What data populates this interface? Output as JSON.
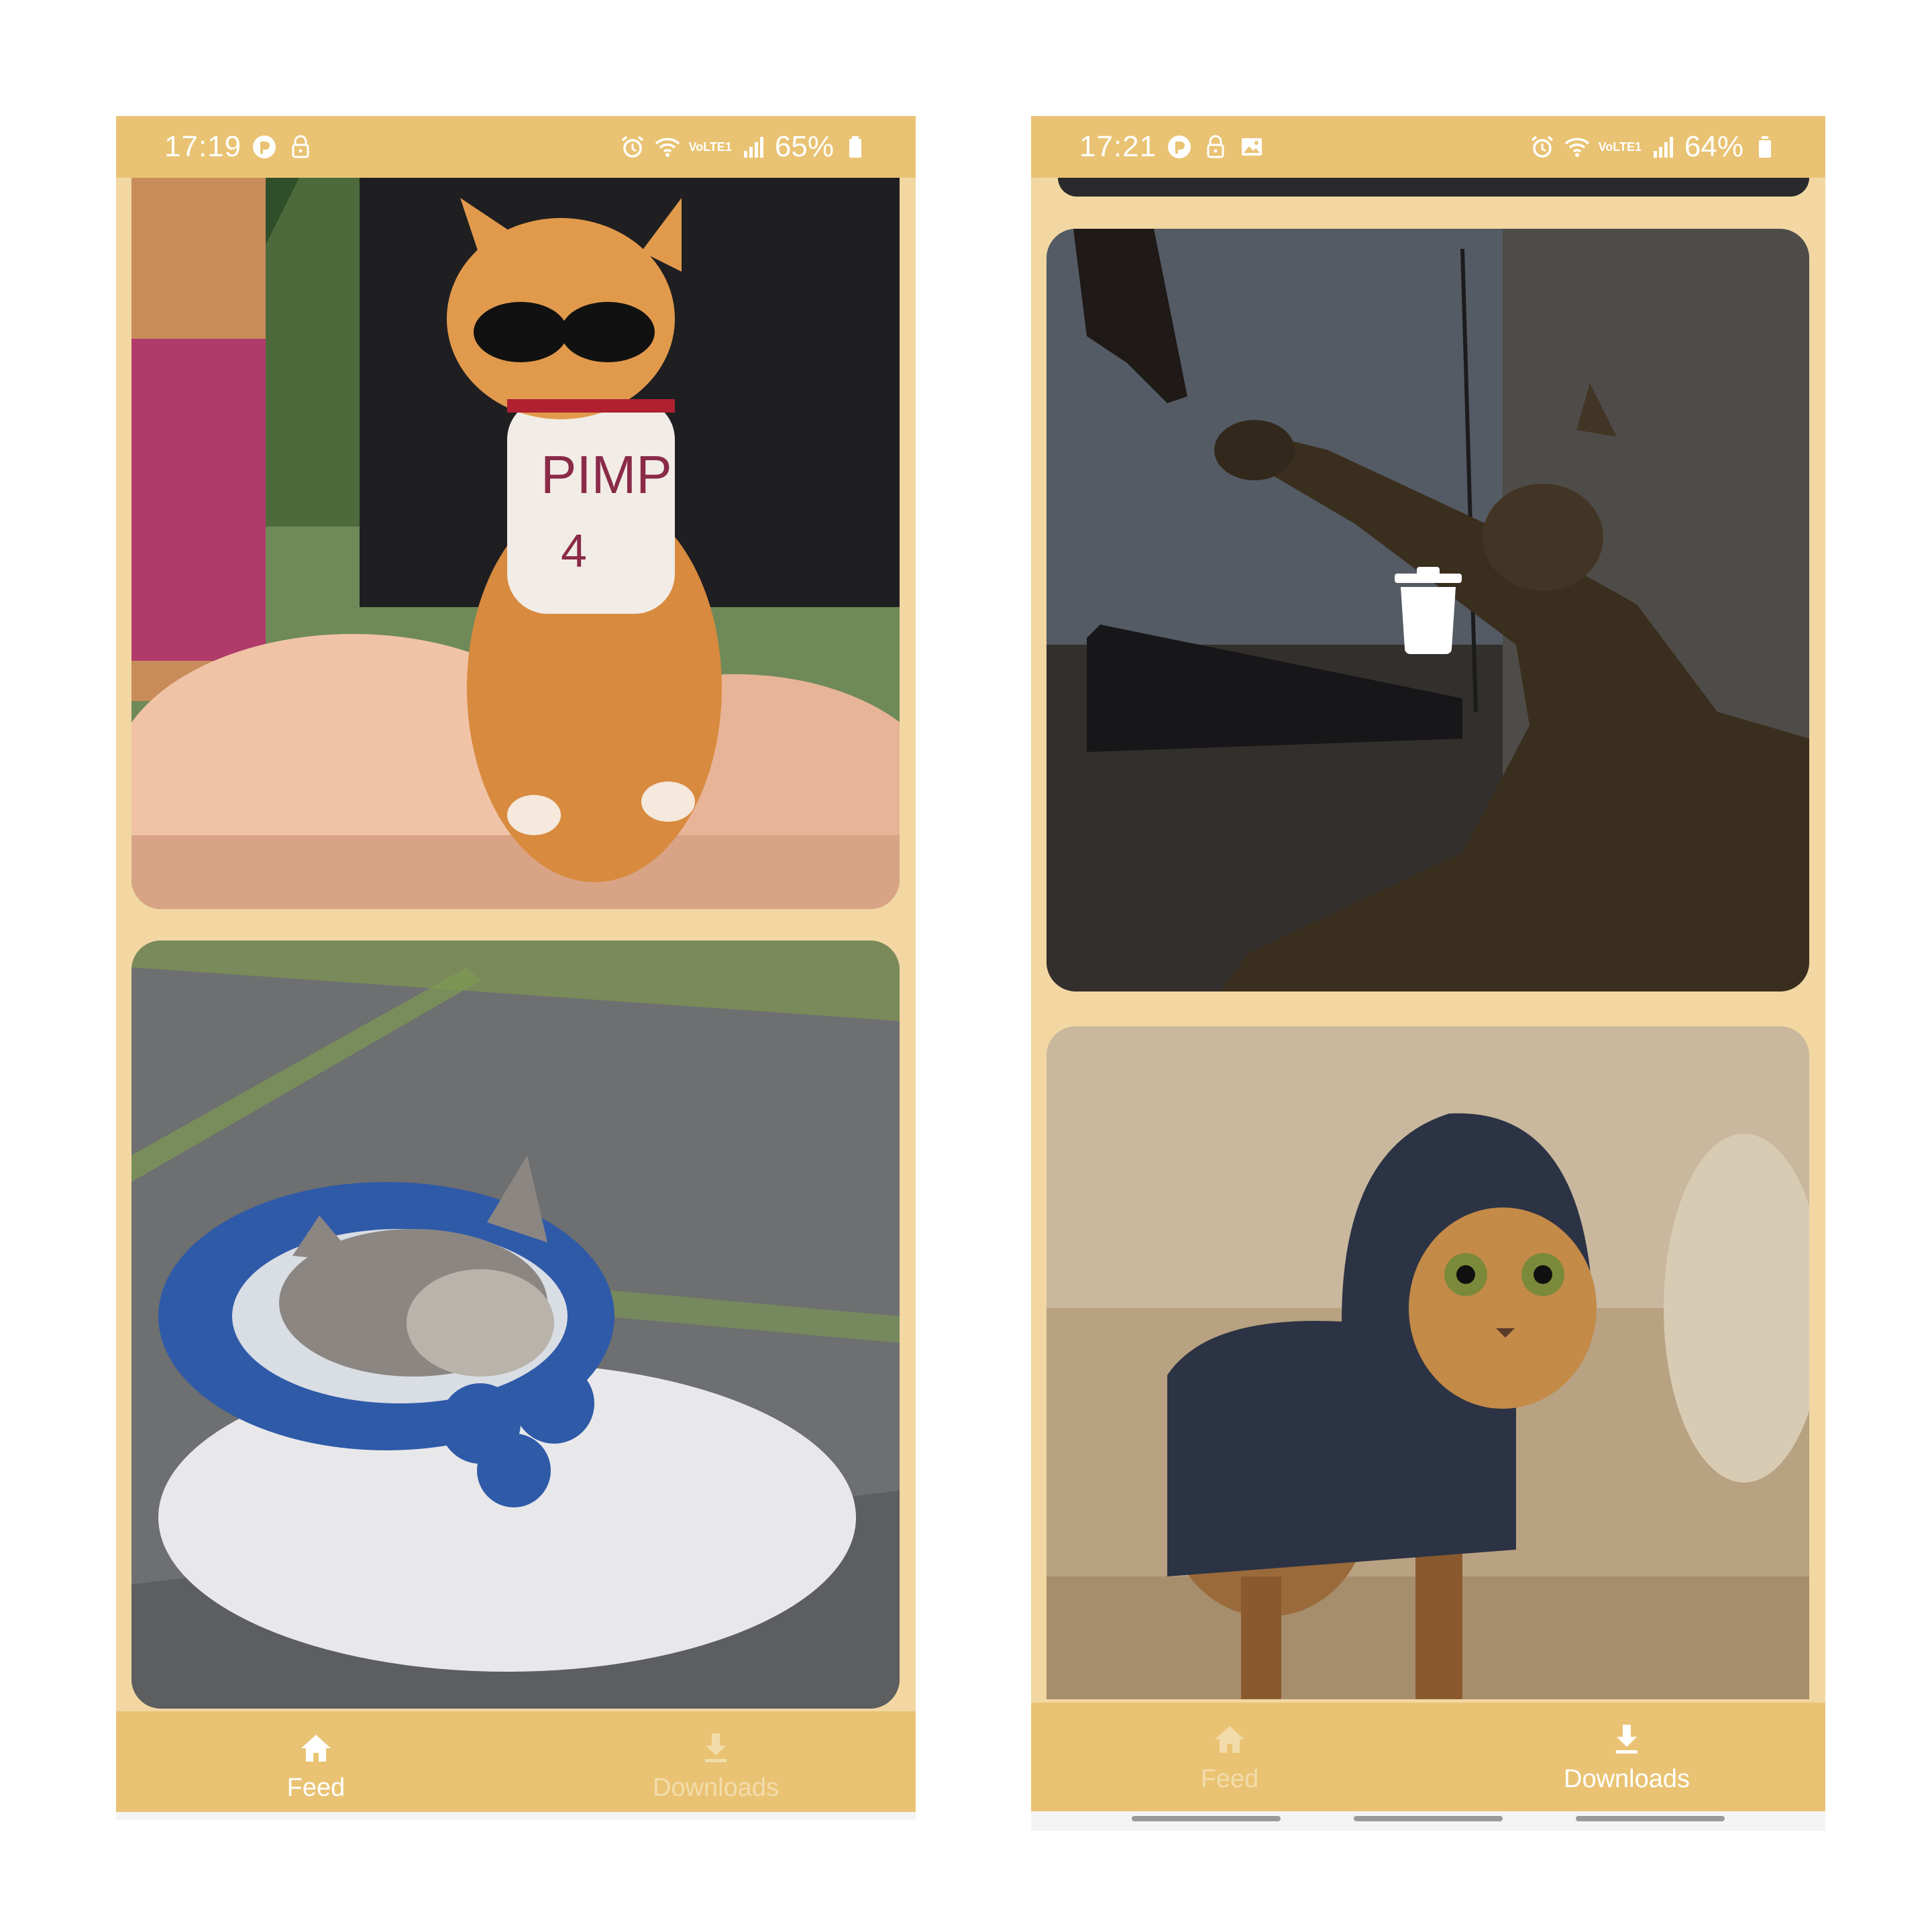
{
  "left_screen": {
    "status": {
      "time": "17:19",
      "battery": "65%",
      "network": "VoLTE1"
    },
    "feed_cards": [
      {
        "subject": "orange kitten wearing sunglasses and shirt"
      },
      {
        "subject": "kitten sleeping in blue slipper"
      }
    ],
    "nav": [
      {
        "label": "Feed",
        "icon": "home-icon",
        "active": true
      },
      {
        "label": "Downloads",
        "icon": "download-icon",
        "active": false
      }
    ]
  },
  "right_screen": {
    "status": {
      "time": "17:21",
      "battery": "64%",
      "network": "VoLTE1"
    },
    "download_cards": [
      {
        "subject": "cat reaching paw toward finger",
        "delete_overlay": true
      },
      {
        "subject": "cat wearing dark hoodie",
        "delete_overlay": false
      }
    ],
    "nav": [
      {
        "label": "Feed",
        "icon": "home-icon",
        "active": false
      },
      {
        "label": "Downloads",
        "icon": "download-icon",
        "active": true
      }
    ]
  },
  "colors": {
    "bar": "#e9c373",
    "background": "#f2d7a2",
    "active_text": "#ffffff",
    "inactive_text": "#f3dcab"
  }
}
